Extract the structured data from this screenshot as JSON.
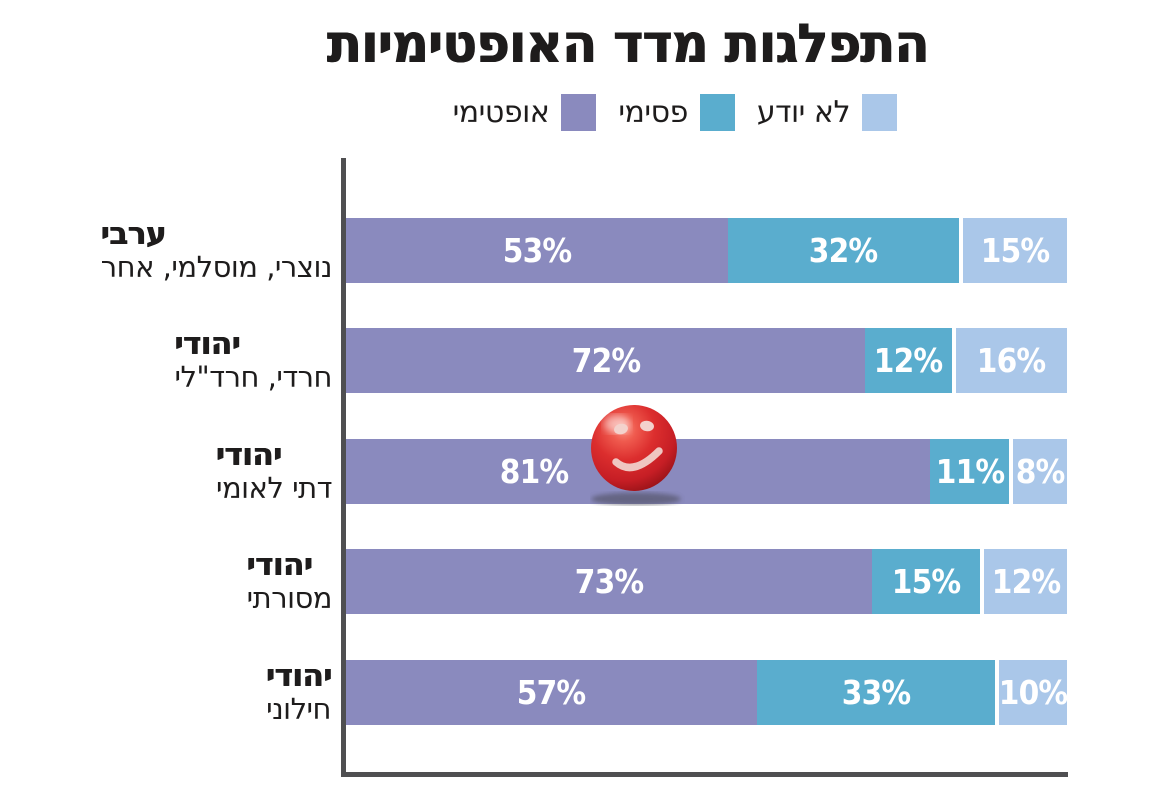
{
  "title": "התפלגות מדד האופטימיות",
  "colors": {
    "optimistic": "#8a8abe",
    "pessimistic": "#5aadce",
    "dont_know": "#aac7e9",
    "axis": "#4f4f51",
    "text": "#1e1c1c",
    "value_text": "#ffffff",
    "ball": "#d2232a"
  },
  "legend": [
    {
      "label": "לא יודע",
      "color_key": "dont_know"
    },
    {
      "label": "פסימי",
      "color_key": "pessimistic"
    },
    {
      "label": "אופטימי",
      "color_key": "optimistic"
    }
  ],
  "icons": {
    "smiley_ball": "red-glossy-smiley-ball"
  },
  "chart_data": {
    "type": "bar",
    "orientation": "horizontal",
    "stacked": true,
    "title": "התפלגות מדד האופטימיות",
    "xlim": [
      0,
      100
    ],
    "value_suffix": "%",
    "legend_position": "top",
    "grid": false,
    "categories": [
      {
        "group": "ערבי",
        "detail": "נוצרי, מוסלמי, אחר"
      },
      {
        "group": "יהודי",
        "detail": "חרדי, חרד\"לי"
      },
      {
        "group": "יהודי",
        "detail": "דתי לאומי"
      },
      {
        "group": "יהודי",
        "detail": "מסורתי"
      },
      {
        "group": "יהודי",
        "detail": "חילוני"
      }
    ],
    "series": [
      {
        "name": "אופטימי",
        "key": "optimistic",
        "color_key": "optimistic",
        "values": [
          53,
          72,
          81,
          73,
          57
        ]
      },
      {
        "name": "פסימי",
        "key": "pessimistic",
        "color_key": "pessimistic",
        "values": [
          32,
          12,
          11,
          15,
          33
        ]
      },
      {
        "name": "לא יודע",
        "key": "dont-know",
        "color_key": "dont_know",
        "values": [
          15,
          16,
          8,
          12,
          10
        ]
      }
    ]
  }
}
